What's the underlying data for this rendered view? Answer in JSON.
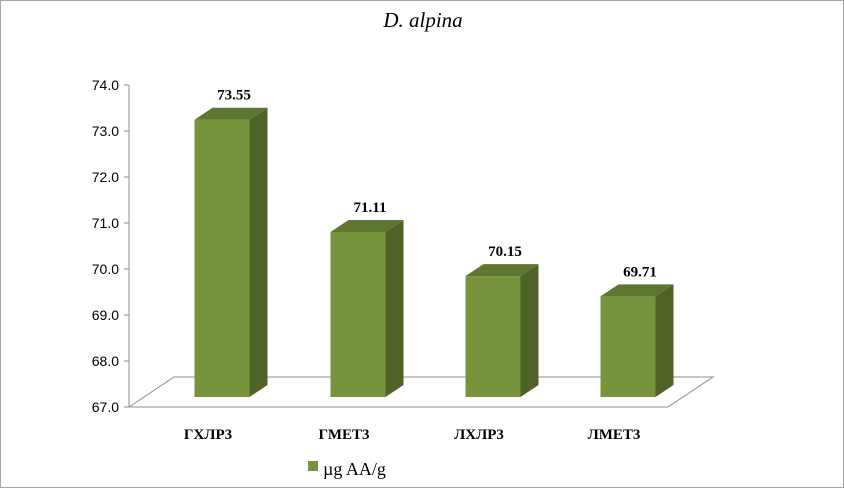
{
  "chart_data": {
    "type": "bar",
    "title": "D. alpina",
    "categories": [
      "ГХЛР3",
      "ГМЕТ3",
      "ЛХЛР3",
      "ЛМЕТ3"
    ],
    "series": [
      {
        "name": "µg AA/g",
        "values": [
          73.55,
          71.11,
          70.15,
          69.71
        ]
      }
    ],
    "data_labels": [
      "73.55",
      "71.11",
      "70.15",
      "69.71"
    ],
    "y_ticks": [
      "67.0",
      "68.0",
      "69.0",
      "70.0",
      "71.0",
      "72.0",
      "73.0",
      "74.0"
    ],
    "ylim": [
      67,
      74
    ],
    "xlabel": "",
    "ylabel": "",
    "grid": false,
    "style": "3d",
    "legend_position": "bottom",
    "colors": {
      "front": "#77933c",
      "side": "#4f6228",
      "top": "#5f7530",
      "floor": "#ffffff"
    }
  }
}
